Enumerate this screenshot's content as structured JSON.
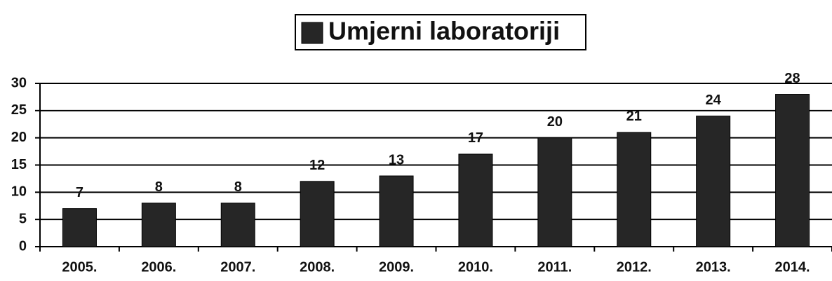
{
  "chart_data": {
    "type": "bar",
    "categories": [
      "2005.",
      "2006.",
      "2007.",
      "2008.",
      "2009.",
      "2010.",
      "2011.",
      "2012.",
      "2013.",
      "2014."
    ],
    "series": [
      {
        "name": "Umjerni laboratoriji",
        "color": "#262626",
        "values": [
          7,
          8,
          8,
          12,
          13,
          17,
          20,
          21,
          24,
          28
        ]
      }
    ],
    "ylim": [
      0,
      30
    ],
    "yticks": [
      0,
      5,
      10,
      15,
      20,
      25,
      30
    ],
    "grid": true,
    "legend": "top"
  }
}
